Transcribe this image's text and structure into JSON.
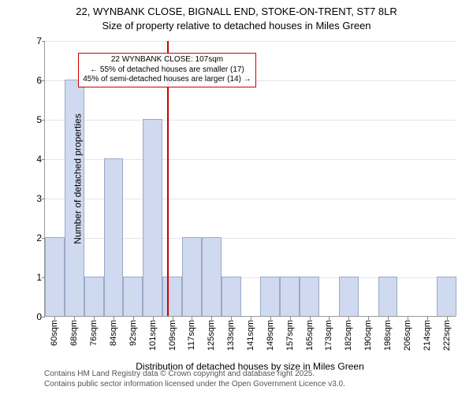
{
  "title_line1": "22, WYNBANK CLOSE, BIGNALL END, STOKE-ON-TRENT, ST7 8LR",
  "title_line2": "Size of property relative to detached houses in Miles Green",
  "y_axis_label": "Number of detached properties",
  "x_axis_label": "Distribution of detached houses by size in Miles Green",
  "footer_line1": "Contains HM Land Registry data © Crown copyright and database right 2025.",
  "footer_line2": "Contains public sector information licensed under the Open Government Licence v3.0.",
  "chart": {
    "type": "histogram",
    "ylim": [
      0,
      7
    ],
    "ytick_step": 1,
    "background_color": "#ffffff",
    "grid_color": "#e6e6e6",
    "axis_color": "#999999",
    "bar_fill": "#cfd9ef",
    "bar_border": "#9aaac8",
    "bar_width_ratio": 1.0,
    "categories": [
      "60sqm",
      "68sqm",
      "76sqm",
      "84sqm",
      "92sqm",
      "101sqm",
      "109sqm",
      "117sqm",
      "125sqm",
      "133sqm",
      "141sqm",
      "149sqm",
      "157sqm",
      "165sqm",
      "173sqm",
      "182sqm",
      "190sqm",
      "198sqm",
      "206sqm",
      "214sqm",
      "222sqm"
    ],
    "values": [
      2,
      6,
      1,
      4,
      1,
      5,
      1,
      2,
      2,
      1,
      0,
      1,
      1,
      1,
      0,
      1,
      0,
      1,
      0,
      0,
      1
    ],
    "marker": {
      "color": "#cc0000",
      "category_index": 5.75,
      "value": "107sqm"
    },
    "annotation": {
      "line1": "22 WYNBANK CLOSE: 107sqm",
      "line2": "← 55% of detached houses are smaller (17)",
      "line3": "45% of semi-detached houses are larger (14) →",
      "border_color": "#cc0000",
      "left_category_index": 1.2,
      "top_value": 6.7
    },
    "fontsize_title": 13,
    "fontsize_axis_label": 12,
    "fontsize_tick": 11,
    "fontsize_annotation": 10
  }
}
